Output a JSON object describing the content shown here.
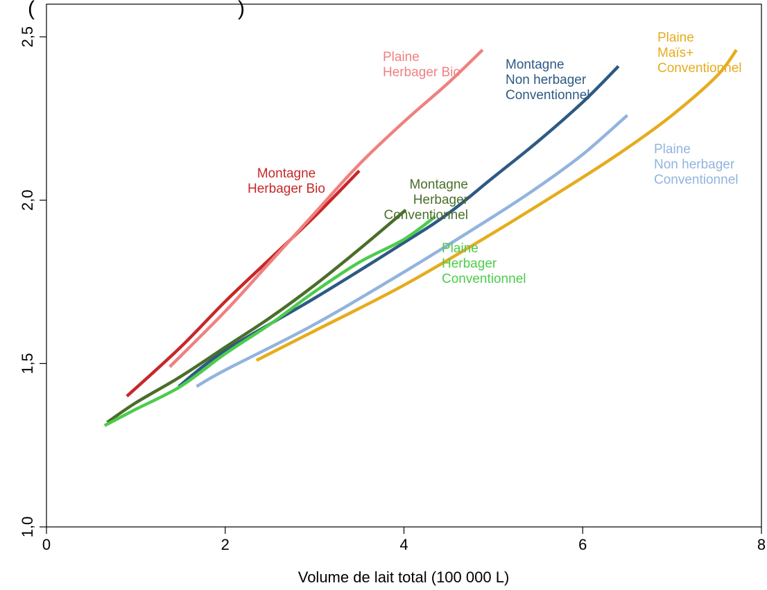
{
  "chart_data": {
    "type": "line",
    "title": "",
    "xlabel": "Volume de lait total (100 000 L)",
    "ylabel": "",
    "xlim": [
      0,
      8
    ],
    "ylim": [
      1.0,
      2.6
    ],
    "x_ticks": [
      "0",
      "2",
      "4",
      "6",
      "8"
    ],
    "y_ticks": [
      "1,0",
      "1,5",
      "2,0",
      "2,5"
    ],
    "grid": false,
    "legend": "none (series labelled directly on the plot)",
    "series": [
      {
        "name_lines": [
          "Montagne",
          "Herbager Bio"
        ],
        "color": "#c62828",
        "points": [
          [
            0.9,
            1.4
          ],
          [
            1.5,
            1.55
          ],
          [
            2.0,
            1.69
          ],
          [
            2.5,
            1.82
          ],
          [
            3.0,
            1.95
          ],
          [
            3.5,
            2.09
          ]
        ]
      },
      {
        "name_lines": [
          "Plaine",
          "Herbager Bio"
        ],
        "color": "#f08080",
        "points": [
          [
            1.38,
            1.49
          ],
          [
            2.0,
            1.66
          ],
          [
            2.5,
            1.81
          ],
          [
            3.0,
            1.96
          ],
          [
            3.5,
            2.11
          ],
          [
            4.0,
            2.24
          ],
          [
            4.5,
            2.36
          ],
          [
            4.88,
            2.46
          ]
        ]
      },
      {
        "name_lines": [
          "Montagne",
          "Non herbager",
          "Conventionnel"
        ],
        "color": "#2e5984",
        "points": [
          [
            1.48,
            1.43
          ],
          [
            2.0,
            1.54
          ],
          [
            3.0,
            1.7
          ],
          [
            4.0,
            1.87
          ],
          [
            4.5,
            1.96
          ],
          [
            5.0,
            2.07
          ],
          [
            5.5,
            2.18
          ],
          [
            6.0,
            2.3
          ],
          [
            6.4,
            2.41
          ]
        ]
      },
      {
        "name_lines": [
          "Plaine",
          "Maïs+",
          "Conventionnel"
        ],
        "color": "#e6ac1e",
        "points": [
          [
            2.35,
            1.51
          ],
          [
            3.0,
            1.6
          ],
          [
            4.0,
            1.74
          ],
          [
            5.0,
            1.9
          ],
          [
            6.0,
            2.07
          ],
          [
            6.5,
            2.16
          ],
          [
            7.0,
            2.26
          ],
          [
            7.5,
            2.38
          ],
          [
            7.72,
            2.46
          ]
        ]
      },
      {
        "name_lines": [
          "Montagne",
          "Herbager",
          "Conventionnel"
        ],
        "color": "#4a6e2a",
        "points": [
          [
            0.68,
            1.32
          ],
          [
            1.0,
            1.38
          ],
          [
            1.5,
            1.46
          ],
          [
            2.0,
            1.55
          ],
          [
            2.5,
            1.64
          ],
          [
            3.0,
            1.74
          ],
          [
            3.5,
            1.85
          ],
          [
            4.02,
            1.97
          ]
        ]
      },
      {
        "name_lines": [
          "Plaine",
          "Non herbager",
          "Conventionnel"
        ],
        "color": "#92b4de",
        "points": [
          [
            1.68,
            1.43
          ],
          [
            2.0,
            1.48
          ],
          [
            3.0,
            1.62
          ],
          [
            4.0,
            1.78
          ],
          [
            5.0,
            1.95
          ],
          [
            5.5,
            2.04
          ],
          [
            6.0,
            2.14
          ],
          [
            6.5,
            2.26
          ]
        ]
      },
      {
        "name_lines": [
          "Plaine",
          "Herbager",
          "Conventionnel"
        ],
        "color": "#4ccc4c",
        "points": [
          [
            0.65,
            1.31
          ],
          [
            1.0,
            1.36
          ],
          [
            1.5,
            1.43
          ],
          [
            2.0,
            1.53
          ],
          [
            2.5,
            1.62
          ],
          [
            3.0,
            1.72
          ],
          [
            3.5,
            1.81
          ],
          [
            4.0,
            1.88
          ],
          [
            4.35,
            1.95
          ]
        ]
      }
    ]
  }
}
